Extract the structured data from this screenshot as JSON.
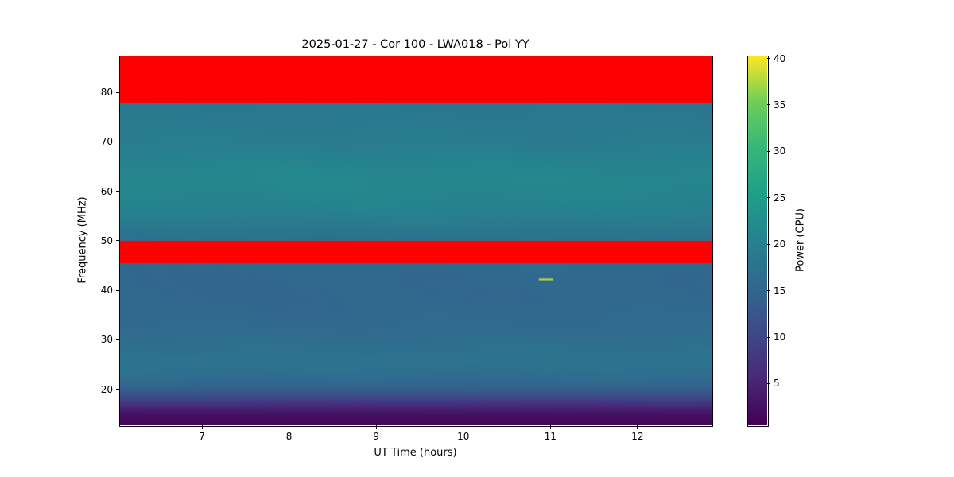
{
  "chart_data": {
    "type": "heatmap",
    "title": "2025-01-27 - Cor 100 - LWA018 - Pol YY",
    "xlabel": "UT Time (hours)",
    "ylabel": "Frequency (MHz)",
    "colorbar_label": "Power (CPU)",
    "x_range": [
      6.05,
      12.85
    ],
    "y_range": [
      12.7,
      87.4
    ],
    "x_ticks": [
      7,
      8,
      9,
      10,
      11,
      12
    ],
    "y_ticks": [
      20,
      30,
      40,
      50,
      60,
      70,
      80
    ],
    "colorbar_ticks": [
      5,
      10,
      15,
      20,
      25,
      30,
      35,
      40
    ],
    "grid": false,
    "legend": "none",
    "color_scale": {
      "colormap": "viridis",
      "vmin": 0.5,
      "vmax": 40.3,
      "anchors": [
        [
          68,
          1,
          84
        ],
        [
          72,
          40,
          120
        ],
        [
          62,
          74,
          137
        ],
        [
          49,
          104,
          142
        ],
        [
          38,
          130,
          142
        ],
        [
          31,
          158,
          137
        ],
        [
          53,
          183,
          121
        ],
        [
          110,
          206,
          88
        ],
        [
          253,
          231,
          37
        ]
      ]
    },
    "rfi_color": "#ff0000",
    "rfi_bands_mhz": [
      [
        45.5,
        50.0
      ],
      [
        78.0,
        87.4
      ]
    ],
    "spectrum_profile": [
      [
        12.7,
        1.2
      ],
      [
        14.0,
        1.8
      ],
      [
        15.0,
        2.8
      ],
      [
        16.0,
        4.5
      ],
      [
        17.0,
        7.0
      ],
      [
        18.0,
        9.5
      ],
      [
        19.0,
        12.0
      ],
      [
        20.0,
        13.8
      ],
      [
        21.5,
        15.5
      ],
      [
        23.0,
        16.8
      ],
      [
        25.0,
        17.6
      ],
      [
        27.0,
        17.4
      ],
      [
        29.0,
        16.8
      ],
      [
        31.0,
        16.2
      ],
      [
        33.0,
        15.8
      ],
      [
        35.0,
        15.6
      ],
      [
        37.0,
        15.4
      ],
      [
        39.0,
        15.3
      ],
      [
        41.0,
        15.3
      ],
      [
        43.0,
        15.4
      ],
      [
        45.4,
        15.5
      ],
      [
        50.1,
        16.8
      ],
      [
        52.0,
        18.0
      ],
      [
        54.0,
        19.2
      ],
      [
        56.0,
        20.0
      ],
      [
        58.0,
        20.6
      ],
      [
        60.0,
        21.0
      ],
      [
        62.0,
        21.2
      ],
      [
        64.0,
        21.0
      ],
      [
        66.0,
        20.4
      ],
      [
        68.0,
        19.8
      ],
      [
        70.0,
        19.2
      ],
      [
        72.0,
        18.9
      ],
      [
        74.0,
        18.7
      ],
      [
        76.0,
        18.4
      ],
      [
        77.9,
        18.2
      ]
    ],
    "burst": {
      "time": 10.95,
      "freq_mhz": 42.2,
      "width_hours": 0.165,
      "power": 38
    }
  }
}
